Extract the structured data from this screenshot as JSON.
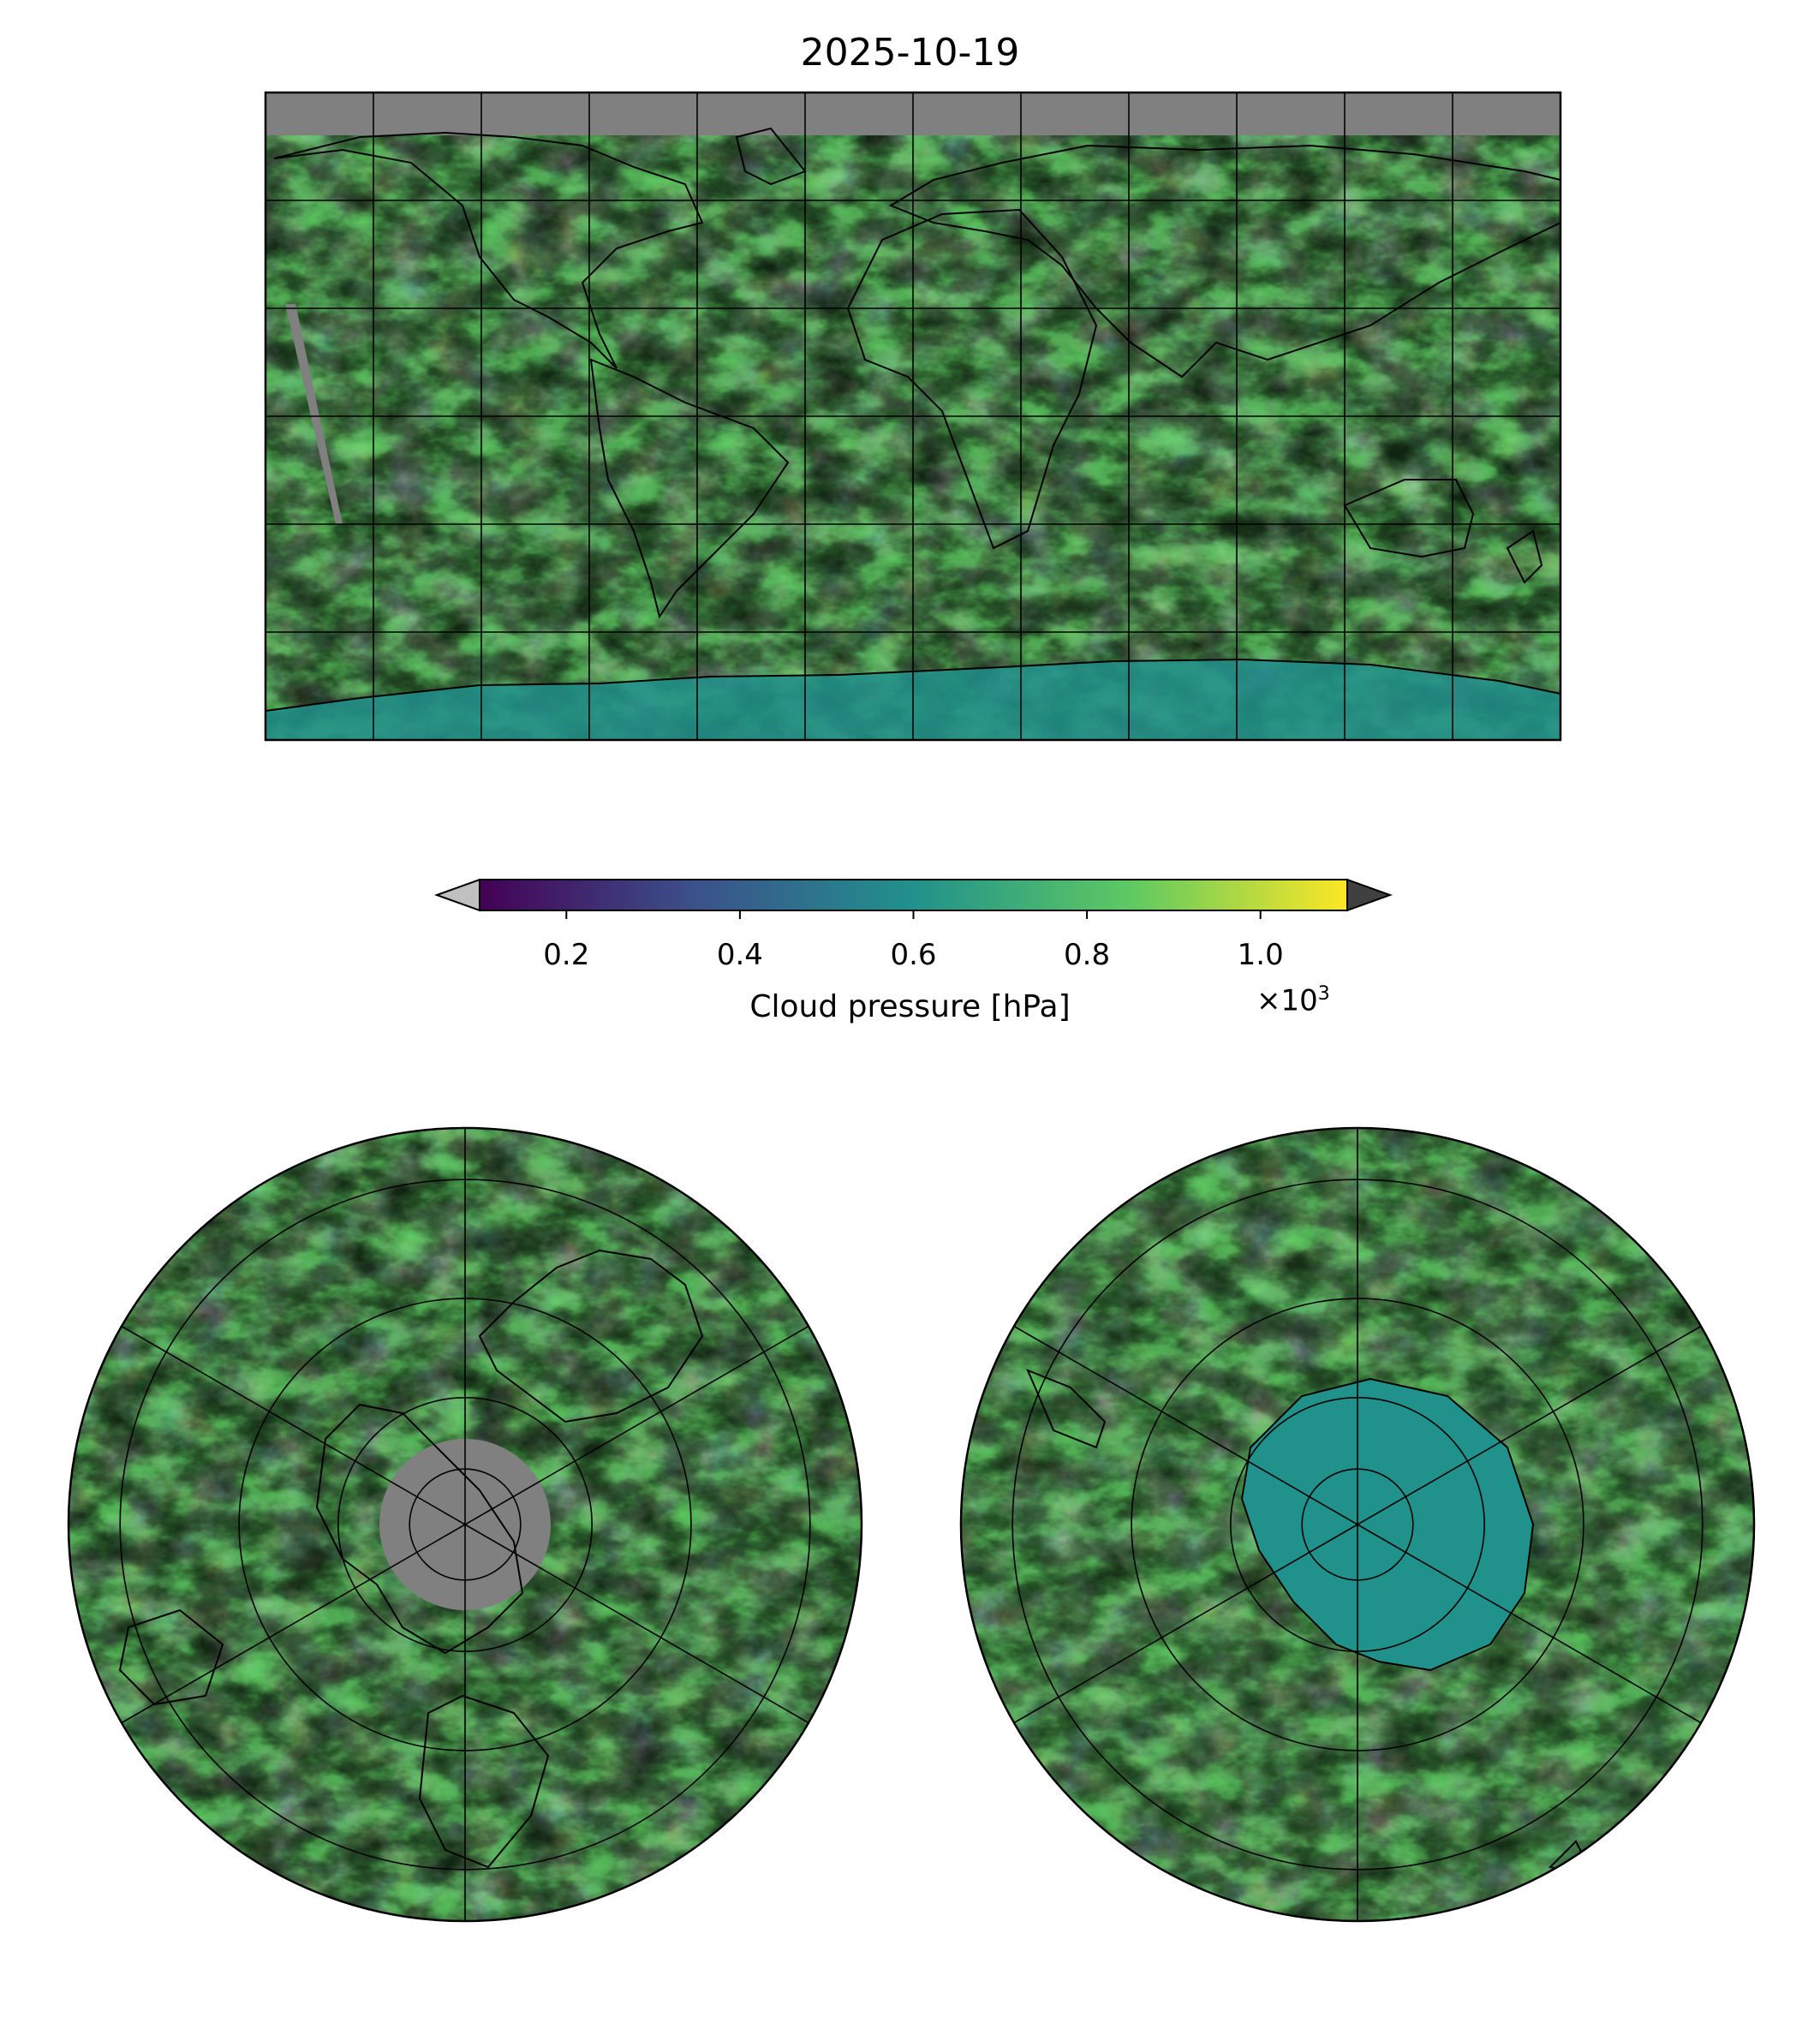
{
  "figure": {
    "title": "2025-10-19"
  },
  "colorbar": {
    "label": "Cloud pressure [hPa]",
    "multiplier_base": "×10",
    "multiplier_exp": "3",
    "ticks": [
      "0.2",
      "0.4",
      "0.6",
      "0.8",
      "1.0"
    ],
    "tick_values": [
      0.2,
      0.4,
      0.6,
      0.8,
      1.0
    ],
    "vmin": 0.1,
    "vmax": 1.1,
    "colormap": "viridis",
    "extend": "both",
    "under_color": "#c0c0c0",
    "over_color": "#404040",
    "colormap_stops": [
      "#440154",
      "#3b528b",
      "#21918c",
      "#5ec962",
      "#fde725"
    ]
  },
  "maps": [
    {
      "name": "global-plate-carree-map",
      "projection": "PlateCarree",
      "gridlines": "30° lon / 30° lat",
      "missing_color": "#808080"
    },
    {
      "name": "north-polar-stereographic-map",
      "projection": "NorthPolarStereo",
      "gridlines": "60° lon",
      "missing_color": "#808080"
    },
    {
      "name": "south-polar-stereographic-map",
      "projection": "SouthPolarStereo",
      "gridlines": "60° lon",
      "missing_color": "#808080"
    }
  ]
}
